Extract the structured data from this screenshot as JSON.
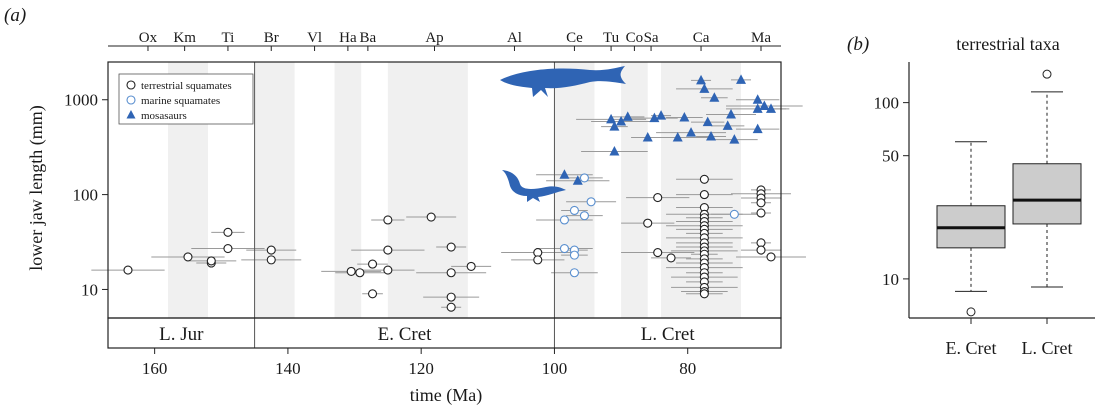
{
  "chart_data": [
    {
      "panel_label": "(a)",
      "type": "scatter",
      "xlabel": "time (Ma)",
      "ylabel": "lower jaw length (mm)",
      "x_ticks": [
        160,
        140,
        120,
        100,
        80
      ],
      "y_ticks": [
        10,
        100,
        1000
      ],
      "y_scale": "log",
      "ylim": [
        5,
        2500
      ],
      "xlim": [
        167,
        66
      ],
      "x_reversed": true,
      "stages": [
        {
          "name": "Ox",
          "x": 161
        },
        {
          "name": "Km",
          "x": 155.5
        },
        {
          "name": "Ti",
          "x": 149
        },
        {
          "name": "Br",
          "x": 142.5
        },
        {
          "name": "Vl",
          "x": 136
        },
        {
          "name": "Ha",
          "x": 131
        },
        {
          "name": "Ba",
          "x": 128
        },
        {
          "name": "Ap",
          "x": 118
        },
        {
          "name": "Al",
          "x": 106
        },
        {
          "name": "Ce",
          "x": 97
        },
        {
          "name": "Tu",
          "x": 91.5
        },
        {
          "name": "Co",
          "x": 88
        },
        {
          "name": "Sa",
          "x": 85.5
        },
        {
          "name": "Ca",
          "x": 78
        },
        {
          "name": "Ma",
          "x": 69
        }
      ],
      "shaded_bands": [
        [
          158,
          152
        ],
        [
          145,
          139
        ],
        [
          133,
          129
        ],
        [
          125,
          113
        ],
        [
          100,
          94
        ],
        [
          90,
          86
        ],
        [
          84,
          72
        ]
      ],
      "period_boundaries": [
        145,
        100
      ],
      "periods": [
        {
          "name": "L. Jur",
          "from": 167,
          "to": 145
        },
        {
          "name": "E. Cret",
          "from": 145,
          "to": 100
        },
        {
          "name": "L. Cret",
          "from": 100,
          "to": 66
        }
      ],
      "legend": {
        "position": "top-left",
        "entries": [
          {
            "label": "terrestrial squamates",
            "marker": "circle",
            "color": "#222222"
          },
          {
            "label": "marine squamates",
            "marker": "circle",
            "color": "#5a8fcf"
          },
          {
            "label": "mosasaurs",
            "marker": "triangle",
            "color": "#2f64b4"
          }
        ]
      },
      "series": [
        {
          "name": "terrestrial squamates",
          "points": [
            [
              164,
              16
            ],
            [
              155,
              22
            ],
            [
              151.5,
              19
            ],
            [
              151.5,
              20
            ],
            [
              149,
              40
            ],
            [
              149,
              27
            ],
            [
              142.5,
              26
            ],
            [
              142.5,
              20.5
            ],
            [
              130.5,
              15.5
            ],
            [
              129.2,
              15
            ],
            [
              127.3,
              9
            ],
            [
              127.3,
              18.5
            ],
            [
              125,
              16
            ],
            [
              125,
              26
            ],
            [
              125,
              54
            ],
            [
              118.5,
              58
            ],
            [
              115.5,
              28
            ],
            [
              115.5,
              15
            ],
            [
              115.5,
              8.3
            ],
            [
              115.5,
              6.5
            ],
            [
              112.5,
              17.5
            ],
            [
              102.5,
              24.5
            ],
            [
              102.5,
              20.5
            ],
            [
              86,
              50
            ],
            [
              84.5,
              93
            ],
            [
              84.5,
              24.5
            ],
            [
              82.5,
              21.5
            ],
            [
              77.5,
              145
            ],
            [
              77.5,
              100
            ],
            [
              77.5,
              73
            ],
            [
              77.5,
              62
            ],
            [
              77.5,
              57
            ],
            [
              77.5,
              52
            ],
            [
              77.5,
              47
            ],
            [
              77.5,
              43
            ],
            [
              77.5,
              39
            ],
            [
              77.5,
              35
            ],
            [
              77.5,
              31
            ],
            [
              77.5,
              28
            ],
            [
              77.5,
              25.5
            ],
            [
              77.5,
              23.5
            ],
            [
              77.5,
              21
            ],
            [
              77.5,
              19
            ],
            [
              77.5,
              17
            ],
            [
              77.5,
              15
            ],
            [
              77.5,
              13.5
            ],
            [
              77.5,
              12
            ],
            [
              77.5,
              10.5
            ],
            [
              77.5,
              9.5
            ],
            [
              77.5,
              9
            ],
            [
              69,
              112
            ],
            [
              69,
              102
            ],
            [
              69,
              92
            ],
            [
              69,
              82
            ],
            [
              69,
              64
            ],
            [
              69,
              31
            ],
            [
              69,
              26
            ],
            [
              67.5,
              22
            ]
          ]
        },
        {
          "name": "marine squamates",
          "points": [
            [
              98.5,
              27
            ],
            [
              98.5,
              54
            ],
            [
              97,
              68
            ],
            [
              97,
              26
            ],
            [
              97,
              23
            ],
            [
              97,
              15
            ],
            [
              95.5,
              150
            ],
            [
              95.5,
              60
            ],
            [
              94.5,
              84
            ],
            [
              73,
              62
            ]
          ]
        },
        {
          "name": "mosasaurs",
          "points": [
            [
              98.5,
              162
            ],
            [
              96.5,
              140
            ],
            [
              91.5,
              620
            ],
            [
              91,
              285
            ],
            [
              91,
              520
            ],
            [
              90,
              590
            ],
            [
              89,
              660
            ],
            [
              86,
              400
            ],
            [
              85,
              640
            ],
            [
              84,
              680
            ],
            [
              81.5,
              400
            ],
            [
              80.5,
              650
            ],
            [
              79.5,
              450
            ],
            [
              78,
              1600
            ],
            [
              77.5,
              1300
            ],
            [
              77,
              580
            ],
            [
              76.5,
              410
            ],
            [
              76,
              1050
            ],
            [
              74,
              530
            ],
            [
              73.5,
              700
            ],
            [
              73,
              380
            ],
            [
              72,
              1620
            ],
            [
              69.5,
              800
            ],
            [
              69.5,
              1000
            ],
            [
              69.5,
              490
            ],
            [
              68.5,
              860
            ],
            [
              67.5,
              800
            ]
          ]
        }
      ]
    },
    {
      "panel_label": "(b)",
      "type": "box",
      "title": "terrestrial taxa",
      "y_scale": "log",
      "ylim": [
        6,
        170
      ],
      "y_ticks": [
        10,
        50,
        100
      ],
      "categories": [
        "E. Cret",
        "L. Cret"
      ],
      "boxes": [
        {
          "name": "E. Cret",
          "min": 8.5,
          "q1": 15,
          "median": 19.5,
          "q3": 26,
          "max": 60,
          "outliers": [
            6.5
          ]
        },
        {
          "name": "L. Cret",
          "min": 9,
          "q1": 20.5,
          "median": 28,
          "q3": 45,
          "max": 115,
          "outliers": [
            145
          ]
        }
      ],
      "fill_color": "#cccccc"
    }
  ]
}
